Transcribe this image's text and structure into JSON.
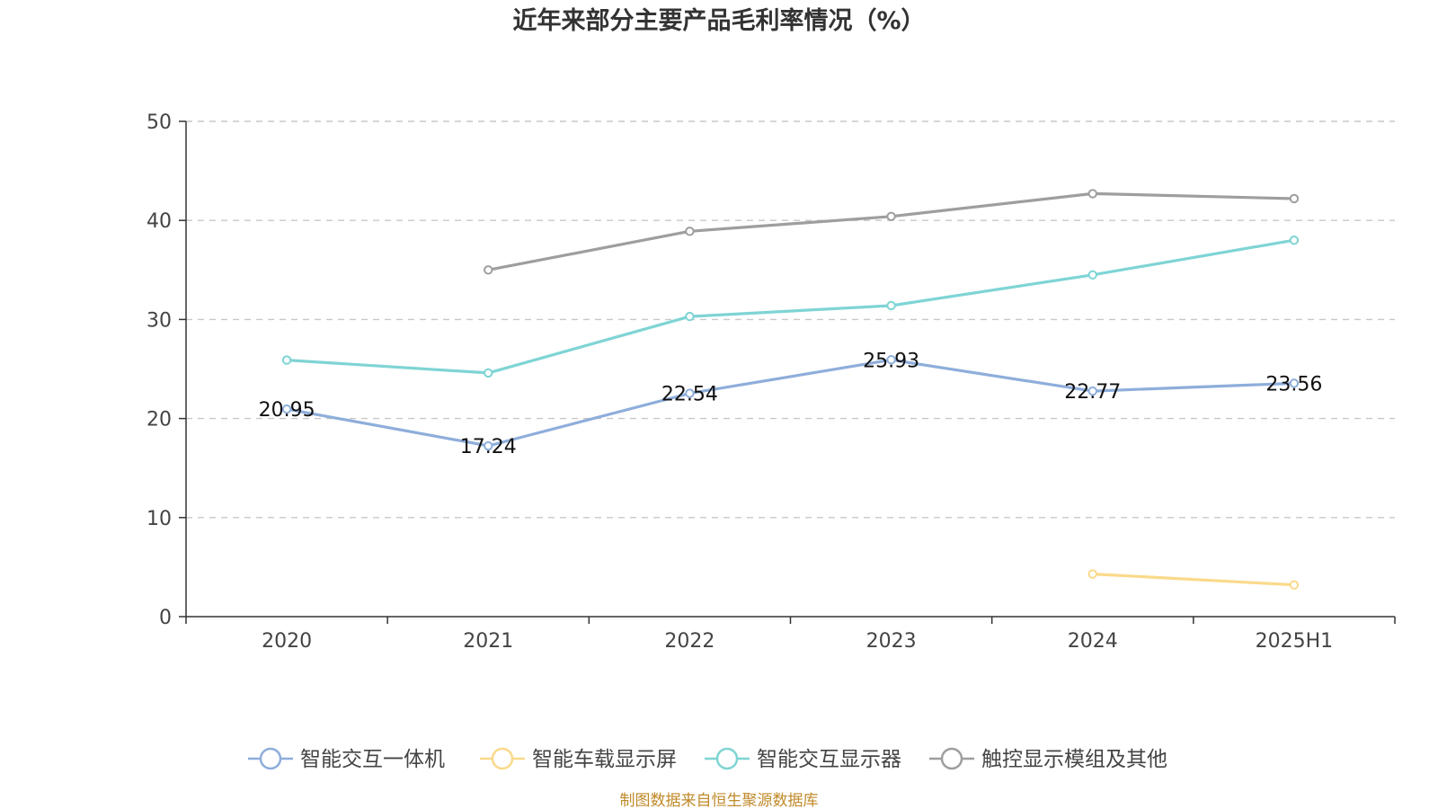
{
  "chart_data": {
    "type": "line",
    "title": "近年来部分主要产品毛利率情况（%）",
    "categories": [
      "2020",
      "2021",
      "2022",
      "2023",
      "2024",
      "2025H1"
    ],
    "ylim": [
      0,
      50
    ],
    "yticks": [
      0,
      10,
      20,
      30,
      40,
      50
    ],
    "grid": true,
    "legend_position": "bottom",
    "series": [
      {
        "name": "智能交互一体机",
        "color": "#8eaedb",
        "values": [
          20.95,
          17.24,
          22.54,
          25.93,
          22.77,
          23.56
        ],
        "labels": [
          "20.95",
          "17.24",
          "22.54",
          "25.93",
          "22.77",
          "23.56"
        ]
      },
      {
        "name": "智能车载显示屏",
        "color": "#fad98a",
        "values": [
          null,
          null,
          null,
          null,
          4.3,
          3.2
        ]
      },
      {
        "name": "智能交互显示器",
        "color": "#7fd4d4",
        "values": [
          25.9,
          24.6,
          30.3,
          31.4,
          34.5,
          38.0
        ]
      },
      {
        "name": "触控显示模组及其他",
        "color": "#9e9e9e",
        "values": [
          null,
          35.0,
          38.9,
          40.4,
          42.7,
          42.2
        ]
      }
    ]
  },
  "source_note": "制图数据来自恒生聚源数据库"
}
